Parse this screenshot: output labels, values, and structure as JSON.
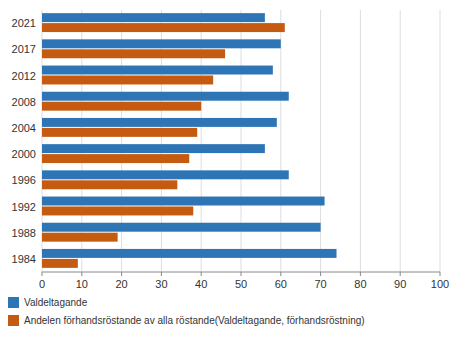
{
  "chart_data": {
    "type": "bar",
    "orientation": "horizontal",
    "categories": [
      "2021",
      "2017",
      "2012",
      "2008",
      "2004",
      "2000",
      "1996",
      "1992",
      "1988",
      "1984"
    ],
    "series": [
      {
        "name": "Valdeltagande",
        "color": "#2E75B6",
        "values": [
          56,
          60,
          58,
          62,
          59,
          56,
          62,
          71,
          70,
          74
        ]
      },
      {
        "name": "Andelen förhandsröstande av alla röstande(Valdeltagande, förhandsröstning)",
        "color": "#C55A11",
        "values": [
          61,
          46,
          43,
          40,
          39,
          37,
          34,
          38,
          19,
          9
        ]
      }
    ],
    "xlim": [
      0,
      100
    ],
    "xticks": [
      0,
      10,
      20,
      30,
      40,
      50,
      60,
      70,
      80,
      90,
      100
    ],
    "grid": true,
    "legend": "bottom"
  }
}
